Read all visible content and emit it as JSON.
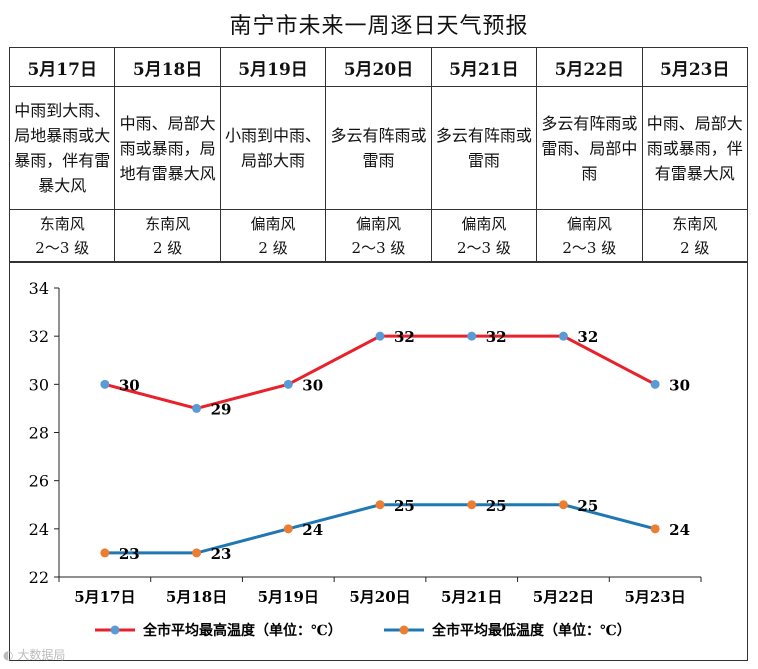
{
  "title": "南宁市未来一周逐日天气预报",
  "days": [
    {
      "date": "5月17日",
      "weather": "中雨到大雨、局地暴雨或大暴雨，伴有雷暴大风",
      "wind_dir": "东南风",
      "wind_level": "2～3 级"
    },
    {
      "date": "5月18日",
      "weather": "中雨、局部大雨或暴雨，局地有雷暴大风",
      "wind_dir": "东南风",
      "wind_level": "2 级"
    },
    {
      "date": "5月19日",
      "weather": "小雨到中雨、局部大雨",
      "wind_dir": "偏南风",
      "wind_level": "2 级"
    },
    {
      "date": "5月20日",
      "weather": "多云有阵雨或雷雨",
      "wind_dir": "偏南风",
      "wind_level": "2～3 级"
    },
    {
      "date": "5月21日",
      "weather": "多云有阵雨或雷雨",
      "wind_dir": "偏南风",
      "wind_level": "2～3 级"
    },
    {
      "date": "5月22日",
      "weather": "多云有阵雨或雷雨、局部中雨",
      "wind_dir": "偏南风",
      "wind_level": "2～3 级"
    },
    {
      "date": "5月23日",
      "weather": "中雨、局部大雨或暴雨，伴有雷暴大风",
      "wind_dir": "东南风",
      "wind_level": "2 级"
    }
  ],
  "chart_data": {
    "type": "line",
    "categories": [
      "5月17日",
      "5月18日",
      "5月19日",
      "5月20日",
      "5月21日",
      "5月22日",
      "5月23日"
    ],
    "series": [
      {
        "name": "全市平均最高温度（单位：℃）",
        "values": [
          30,
          29,
          30,
          32,
          32,
          32,
          30
        ],
        "color": "#e8212b",
        "marker_color": "#5b9bd5"
      },
      {
        "name": "全市平均最低温度（单位：℃）",
        "values": [
          23,
          23,
          24,
          25,
          25,
          25,
          24
        ],
        "color": "#1f78b4",
        "marker_color": "#ed7d31"
      }
    ],
    "ylim": [
      22,
      34
    ],
    "yticks": [
      "22",
      "24",
      "26",
      "28",
      "30",
      "32",
      "34"
    ],
    "grid": false,
    "legend": "bottom"
  },
  "watermark": "大数据局",
  "icon": "watermark-logo-icon"
}
